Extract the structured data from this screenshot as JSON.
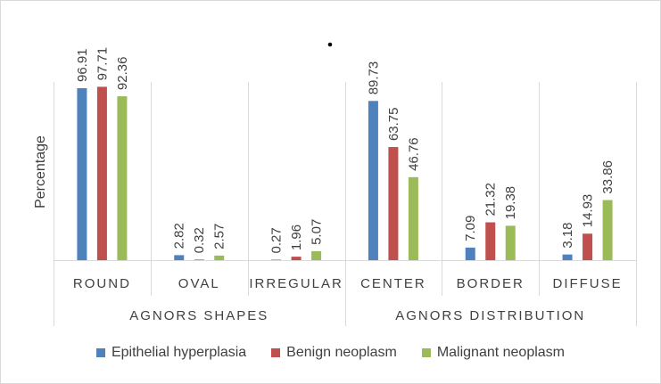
{
  "chart_data": {
    "type": "bar",
    "ylabel": "Percentage",
    "ylim": [
      0,
      100
    ],
    "grid": false,
    "legend_position": "bottom",
    "categories": [
      "ROUND",
      "OVAL",
      "IRREGULAR",
      "CENTER",
      "BORDER",
      "DIFFUSE"
    ],
    "groups": [
      {
        "label": "AGNORS SHAPES",
        "categories": [
          "ROUND",
          "OVAL",
          "IRREGULAR"
        ]
      },
      {
        "label": "AGNORS DISTRIBUTION",
        "categories": [
          "CENTER",
          "BORDER",
          "DIFFUSE"
        ]
      }
    ],
    "series": [
      {
        "name": "Epithelial hyperplasia",
        "color": "#4f81bd",
        "values": [
          96.91,
          2.82,
          0.27,
          89.73,
          7.09,
          3.18
        ],
        "labels": [
          "96.91",
          "2.82",
          "0.27",
          "89.73",
          "7.09",
          "3.18"
        ]
      },
      {
        "name": "Benign neoplasm",
        "color": "#c0504d",
        "values": [
          97.71,
          0.32,
          1.96,
          63.75,
          21.32,
          14.93
        ],
        "labels": [
          "97.71",
          "0.32",
          "1.96",
          "63.75",
          "21.32",
          "14.93"
        ]
      },
      {
        "name": "Malignant neoplasm",
        "color": "#9bbb59",
        "values": [
          92.36,
          2.57,
          5.07,
          46.76,
          19.38,
          33.86
        ],
        "labels": [
          "92.36",
          "2.57",
          "5.07",
          "46.76",
          "19.38",
          "33.86"
        ]
      }
    ]
  }
}
